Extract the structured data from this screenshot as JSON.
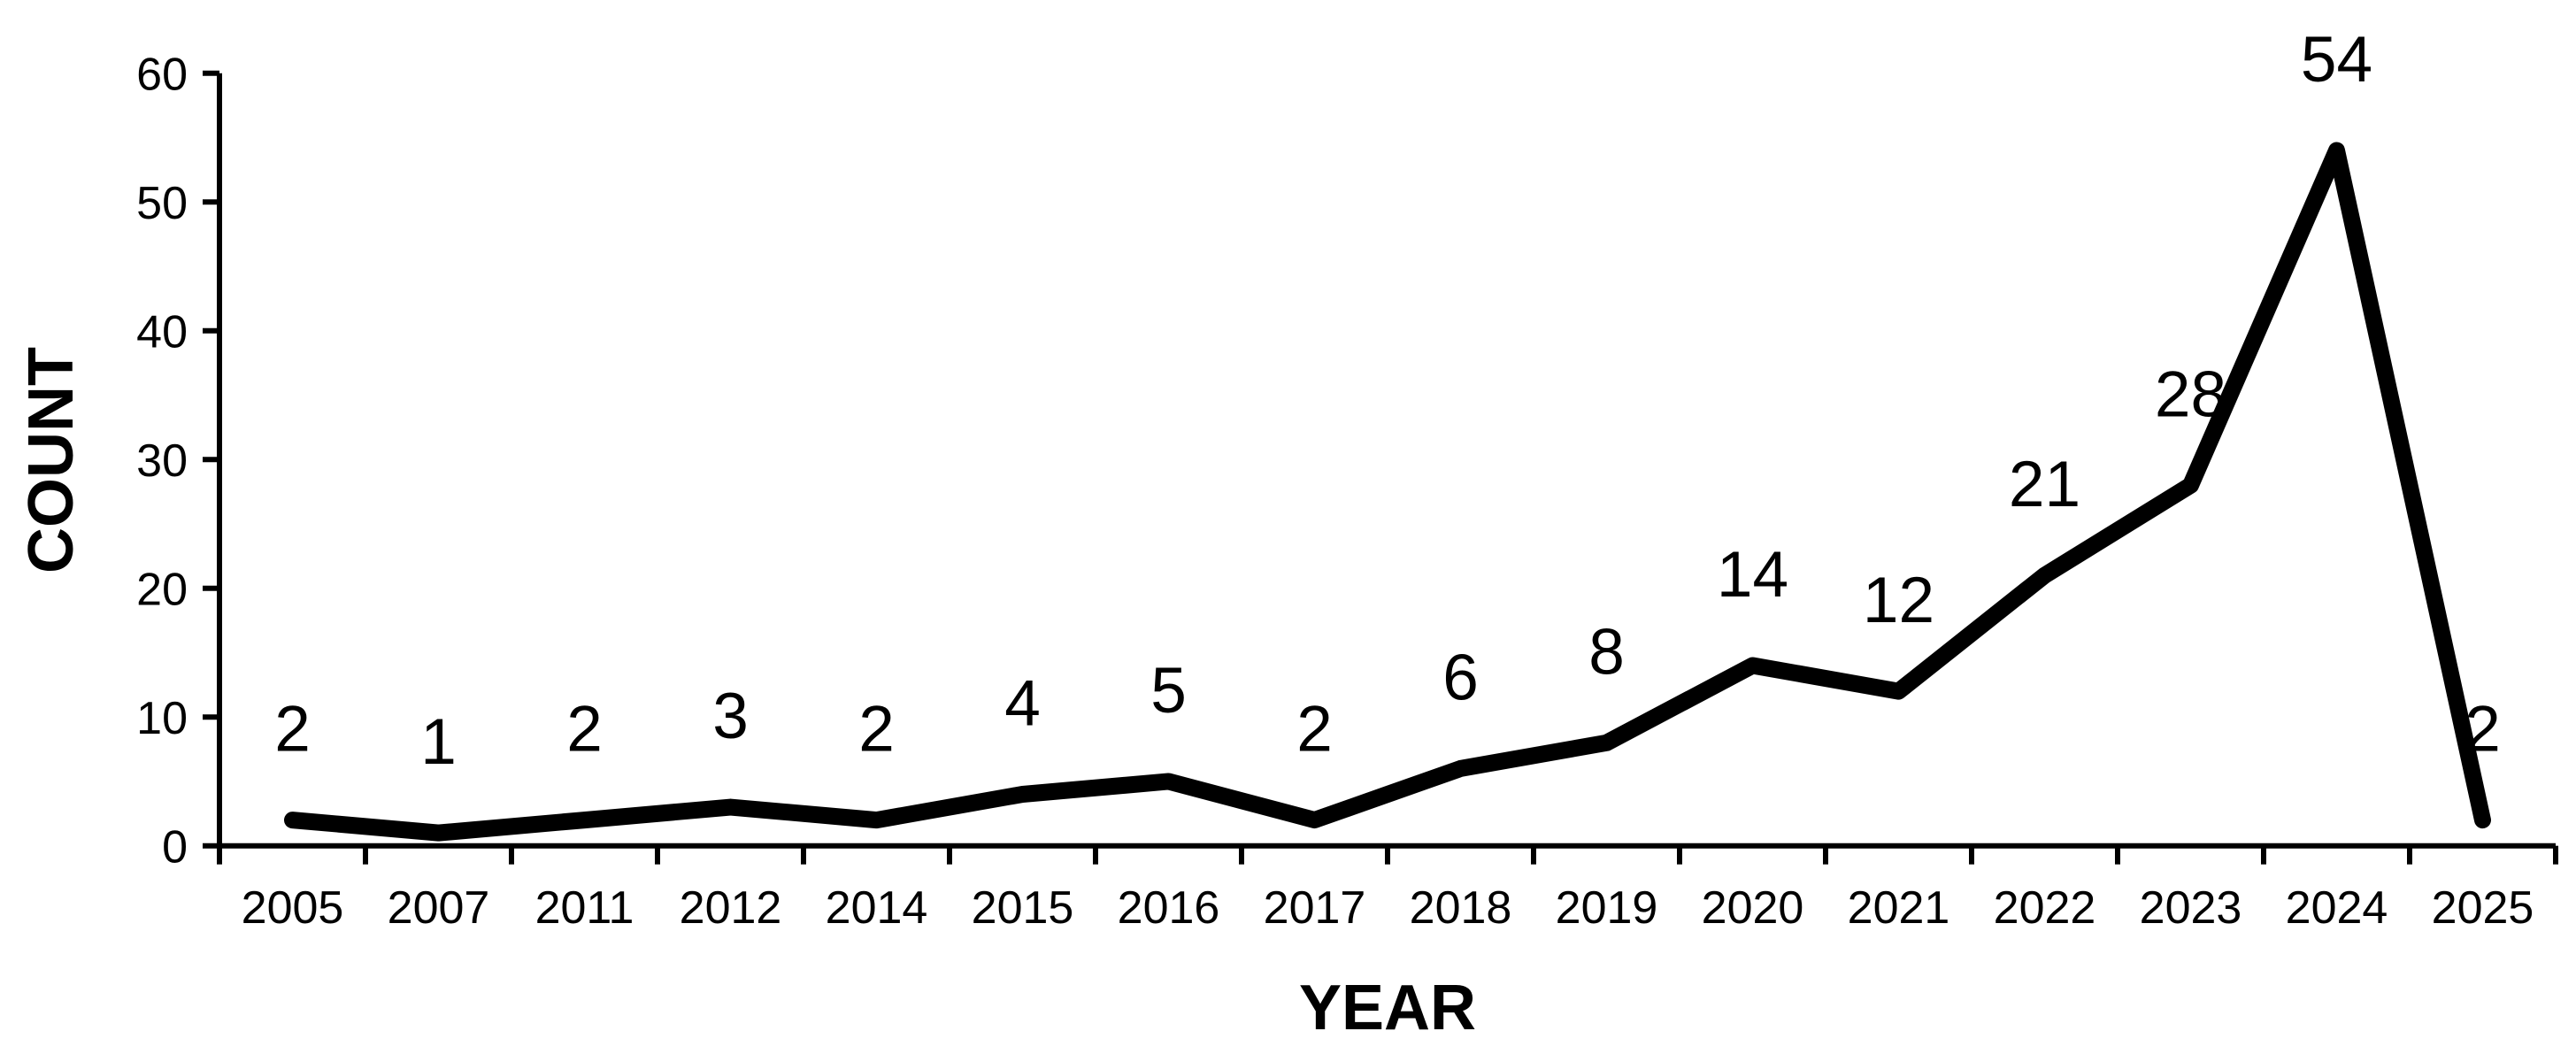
{
  "chart_data": {
    "type": "line",
    "title": "",
    "xlabel": "YEAR",
    "ylabel": "COUNT",
    "categories": [
      "2005",
      "2007",
      "2011",
      "2012",
      "2014",
      "2015",
      "2016",
      "2017",
      "2018",
      "2019",
      "2020",
      "2021",
      "2022",
      "2023",
      "2024",
      "2025"
    ],
    "values": [
      2,
      1,
      2,
      3,
      2,
      4,
      5,
      2,
      6,
      8,
      14,
      12,
      21,
      28,
      54,
      2
    ],
    "data_labels": [
      "2",
      "1",
      "2",
      "3",
      "2",
      "4",
      "5",
      "2",
      "6",
      "8",
      "14",
      "12",
      "21",
      "28",
      "54",
      "2"
    ],
    "yticks": [
      0,
      10,
      20,
      30,
      40,
      50,
      60
    ],
    "ylim": [
      0,
      60
    ],
    "grid": false,
    "legend": false,
    "data_label_position": "above",
    "line_color": "#000000",
    "axis_color": "#000000",
    "text_color": "#000000",
    "background_color": "#ffffff"
  }
}
